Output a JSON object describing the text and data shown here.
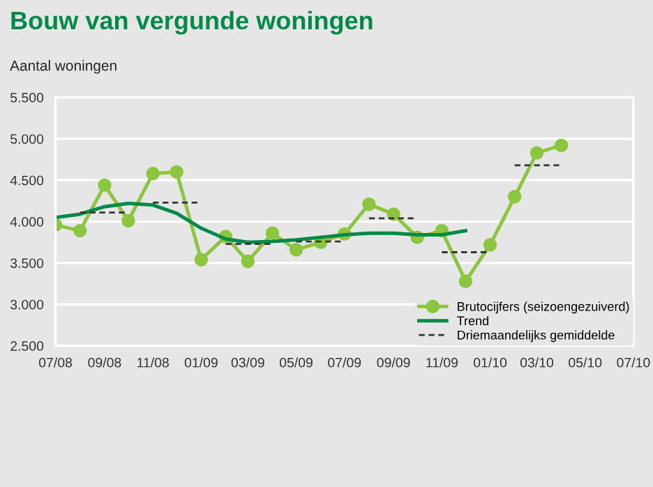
{
  "chart_data": {
    "type": "line",
    "title": "Bouw van vergunde woningen",
    "ylabel": "Aantal woningen",
    "x": [
      "2008-07",
      "2008-08",
      "2008-09",
      "2008-10",
      "2008-11",
      "2008-12",
      "2009-01",
      "2009-02",
      "2009-03",
      "2009-04",
      "2009-05",
      "2009-06",
      "2009-07",
      "2009-08",
      "2009-09",
      "2009-10",
      "2009-11",
      "2009-12",
      "2010-01",
      "2010-02",
      "2010-03",
      "2010-04"
    ],
    "series": [
      {
        "name": "Brutocijfers (seizoengezuiverd)",
        "color": "#8cc63f",
        "marker": "circle",
        "values": [
          3960,
          3890,
          4440,
          4010,
          4580,
          4600,
          3540,
          3820,
          3520,
          3860,
          3660,
          3750,
          3850,
          4210,
          4090,
          3810,
          3890,
          3280,
          3720,
          4300,
          4830,
          4920
        ]
      },
      {
        "name": "Trend",
        "color": "#008a4a",
        "x": [
          "2008-07",
          "2008-08",
          "2008-09",
          "2008-10",
          "2008-11",
          "2008-12",
          "2009-01",
          "2009-02",
          "2009-03",
          "2009-04",
          "2009-05",
          "2009-06",
          "2009-07",
          "2009-08",
          "2009-09",
          "2009-10",
          "2009-11",
          "2009-12"
        ],
        "values": [
          4050,
          4090,
          4180,
          4220,
          4200,
          4100,
          3920,
          3790,
          3750,
          3760,
          3780,
          3810,
          3840,
          3860,
          3860,
          3840,
          3840,
          3890
        ]
      },
      {
        "name": "Driemaandelijks gemiddelde",
        "color": "#333333",
        "line_style": "dashed",
        "x": [
          "2008-08",
          "2008-10"
        ],
        "values": [
          4110,
          4110
        ]
      },
      {
        "color": "#333333",
        "line_style": "dashed",
        "x": [
          "2008-11",
          "2009-01"
        ],
        "values": [
          4230,
          4230
        ]
      },
      {
        "color": "#333333",
        "line_style": "dashed",
        "x": [
          "2009-02",
          "2009-04"
        ],
        "values": [
          3730,
          3730
        ]
      },
      {
        "color": "#333333",
        "line_style": "dashed",
        "x": [
          "2009-05",
          "2009-07"
        ],
        "values": [
          3760,
          3760
        ]
      },
      {
        "color": "#333333",
        "line_style": "dashed",
        "x": [
          "2009-08",
          "2009-10"
        ],
        "values": [
          4040,
          4040
        ]
      },
      {
        "color": "#333333",
        "line_style": "dashed",
        "x": [
          "2009-11",
          "2010-01"
        ],
        "values": [
          3630,
          3630
        ]
      },
      {
        "color": "#333333",
        "line_style": "dashed",
        "x": [
          "2010-02",
          "2010-04"
        ],
        "values": [
          4680,
          4680
        ]
      }
    ],
    "xlim": [
      "2008-07",
      "2010-07"
    ],
    "xticks": [
      {
        "value": "2008-07",
        "label": "07/08"
      },
      {
        "value": "2008-09",
        "label": "09/08"
      },
      {
        "value": "2008-11",
        "label": "11/08"
      },
      {
        "value": "2009-01",
        "label": "01/09"
      },
      {
        "value": "2009-03",
        "label": "03/09"
      },
      {
        "value": "2009-05",
        "label": "05/09"
      },
      {
        "value": "2009-07",
        "label": "07/09"
      },
      {
        "value": "2009-09",
        "label": "09/09"
      },
      {
        "value": "2009-11",
        "label": "11/09"
      },
      {
        "value": "2010-01",
        "label": "01/10"
      },
      {
        "value": "2010-03",
        "label": "03/10"
      },
      {
        "value": "2010-05",
        "label": "05/10"
      },
      {
        "value": "2010-07",
        "label": "07/10"
      }
    ],
    "ylim": [
      2500,
      5500
    ],
    "yticks": [
      {
        "value": 2500,
        "label": "2.500"
      },
      {
        "value": 3000,
        "label": "3.000"
      },
      {
        "value": 3500,
        "label": "3.500"
      },
      {
        "value": 4000,
        "label": "4.000"
      },
      {
        "value": 4500,
        "label": "4.500"
      },
      {
        "value": 5000,
        "label": "5.000"
      },
      {
        "value": 5500,
        "label": "5.500"
      }
    ],
    "grid": "y",
    "legend": "bottom right"
  }
}
